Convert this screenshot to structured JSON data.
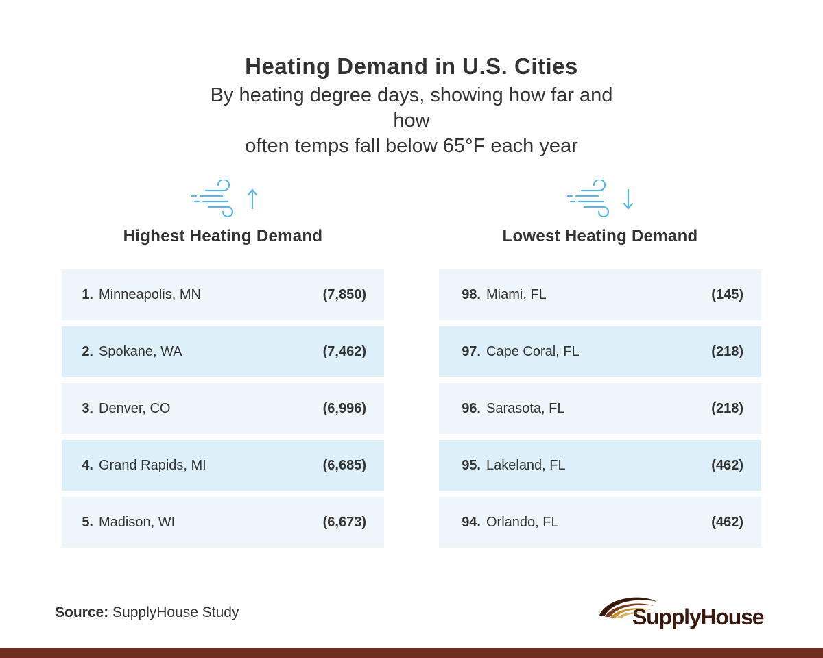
{
  "header": {
    "title": "Heating Demand in U.S. Cities",
    "subtitle_line1": "By heating degree days, showing how far and how",
    "subtitle_line2": "often temps fall below 65°F each year"
  },
  "highest": {
    "heading": "Highest Heating Demand",
    "icon": "wind-arrow-up-icon",
    "rows": [
      {
        "rank": "1.",
        "city": "Minneapolis, MN",
        "value": "(7,850)"
      },
      {
        "rank": "2.",
        "city": "Spokane, WA",
        "value": "(7,462)"
      },
      {
        "rank": "3.",
        "city": "Denver, CO",
        "value": "(6,996)"
      },
      {
        "rank": "4.",
        "city": "Grand Rapids, MI",
        "value": "(6,685)"
      },
      {
        "rank": "5.",
        "city": "Madison, WI",
        "value": "(6,673)"
      }
    ]
  },
  "lowest": {
    "heading": "Lowest Heating Demand",
    "icon": "wind-arrow-down-icon",
    "rows": [
      {
        "rank": "98.",
        "city": "Miami, FL",
        "value": "(145)"
      },
      {
        "rank": "97.",
        "city": "Cape Coral, FL",
        "value": "(218)"
      },
      {
        "rank": "96.",
        "city": "Sarasota, FL",
        "value": "(218)"
      },
      {
        "rank": "95.",
        "city": "Lakeland, FL",
        "value": "(462)"
      },
      {
        "rank": "94.",
        "city": "Orlando, FL",
        "value": "(462)"
      }
    ]
  },
  "source": {
    "label": "Source:",
    "text": "SupplyHouse Study"
  },
  "logo": {
    "text": "SupplyHouse"
  },
  "colors": {
    "row_light": "#eef6fc",
    "row_dark": "#ddeff9",
    "icon": "#5bb6e6",
    "footer": "#6b2e20"
  }
}
